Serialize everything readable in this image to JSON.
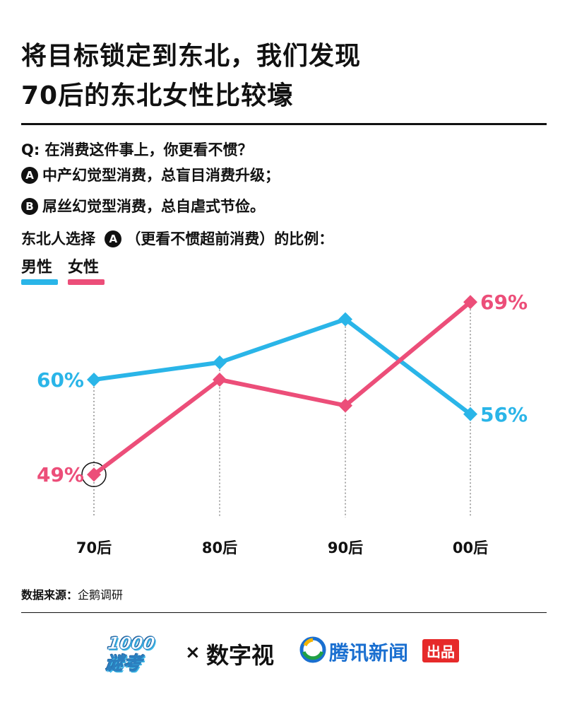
{
  "title": {
    "line1": "将目标锁定到东北，我们发现",
    "line2": "70后的东北女性比较壕"
  },
  "question": {
    "q": "Q: 在消费这件事上，你更看不惯？",
    "option_a_badge": "A",
    "option_a": "中产幻觉型消费，总盲目消费升级；",
    "option_b_badge": "B",
    "option_b": "屌丝幻觉型消费，总自虐式节俭。"
  },
  "chart_heading": {
    "prefix": "东北人选择",
    "badge": "A",
    "suffix": "（更看不惯超前消费）的比例："
  },
  "legend": {
    "male": "男性",
    "female": "女性",
    "male_color": "#2ab5e8",
    "female_color": "#ec4e79"
  },
  "chart_data": {
    "type": "line",
    "categories": [
      "70后",
      "80后",
      "90后",
      "00后"
    ],
    "series": [
      {
        "name": "男性",
        "color": "#2ab5e8",
        "values": [
          60,
          62,
          67,
          56
        ],
        "labels": [
          "60%",
          null,
          null,
          "56%"
        ]
      },
      {
        "name": "女性",
        "color": "#ec4e79",
        "values": [
          49,
          60,
          57,
          69
        ],
        "labels": [
          "49%",
          null,
          null,
          "69%"
        ]
      }
    ],
    "ylim": [
      45,
      70
    ],
    "grid": "vertical dotted lines at each category",
    "highlight": "circle around 女性 70后 point"
  },
  "source": {
    "label": "数据来源：",
    "value": "企鹅调研"
  },
  "footer": {
    "logo1_line1": "1000",
    "logo1_line2": "谜考",
    "times": "×",
    "logo2": "数字视",
    "logo3_name": "腾讯新闻",
    "logo3_tag": "出品"
  }
}
